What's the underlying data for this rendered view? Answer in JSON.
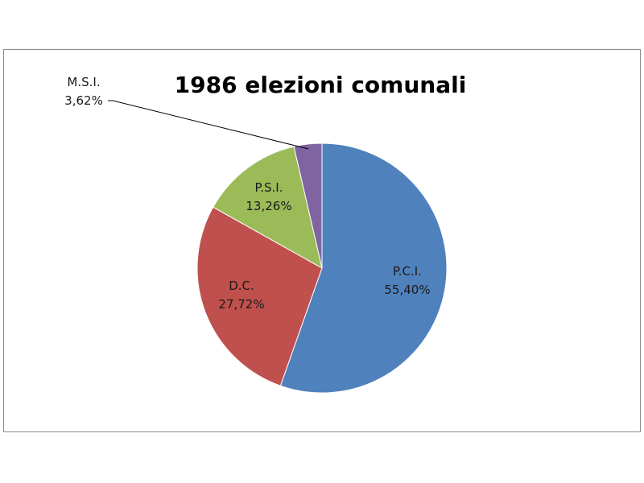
{
  "chart_data": {
    "type": "pie",
    "title": "1986 elezioni comunali",
    "slices": [
      {
        "name": "P.C.I.",
        "value": 55.4,
        "label": "55,40%",
        "color": "#4f81bd"
      },
      {
        "name": "D.C.",
        "value": 27.72,
        "label": "27,72%",
        "color": "#c0504d"
      },
      {
        "name": "P.S.I.",
        "value": 13.26,
        "label": "13,26%",
        "color": "#9bbb59"
      },
      {
        "name": "M.S.I.",
        "value": 3.62,
        "label": "3,62%",
        "color": "#8064a2"
      }
    ],
    "start": "12 o'clock",
    "direction": "clockwise",
    "legend": "none"
  }
}
